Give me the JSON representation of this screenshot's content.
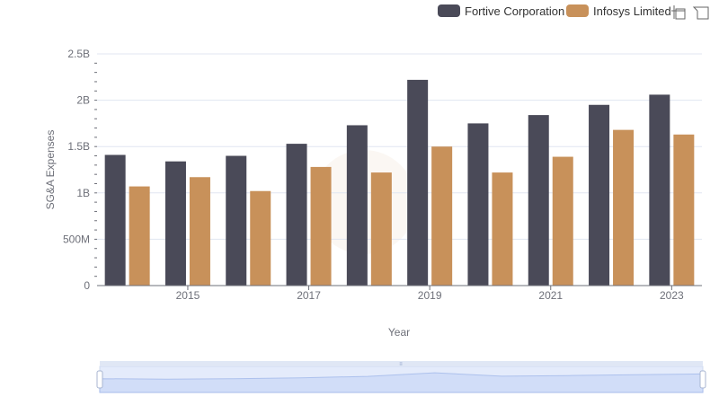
{
  "chart_data": {
    "type": "bar",
    "title": "",
    "xlabel": "Year",
    "ylabel": "SG&A Expenses",
    "categories": [
      "2014",
      "2015",
      "2016",
      "2017",
      "2018",
      "2019",
      "2020",
      "2021",
      "2022",
      "2023"
    ],
    "x_tick_labels": [
      "2015",
      "2017",
      "2019",
      "2021",
      "2023"
    ],
    "y_ticks": [
      {
        "value": 0,
        "label": "0"
      },
      {
        "value": 500000000,
        "label": "500M"
      },
      {
        "value": 1000000000,
        "label": "1B"
      },
      {
        "value": 1500000000,
        "label": "1.5B"
      },
      {
        "value": 2000000000,
        "label": "2B"
      },
      {
        "value": 2500000000,
        "label": "2.5B"
      }
    ],
    "ylim": [
      0,
      2500000000
    ],
    "grid": true,
    "legend_position": "top-right",
    "series": [
      {
        "name": "Fortive Corporation",
        "color": "#4a4a58",
        "values": [
          1410000000,
          1340000000,
          1400000000,
          1530000000,
          1730000000,
          2220000000,
          1750000000,
          1840000000,
          1950000000,
          2060000000
        ]
      },
      {
        "name": "Infosys Limited",
        "color": "#c8915a",
        "values": [
          1070000000,
          1170000000,
          1020000000,
          1280000000,
          1220000000,
          1500000000,
          1220000000,
          1390000000,
          1680000000,
          1630000000
        ]
      }
    ]
  },
  "toolbar": {
    "zoom_icon": "crosshair-zoom-icon",
    "reset_icon": "reset-zoom-icon"
  },
  "datazoom": {
    "handle_label": "≡"
  }
}
